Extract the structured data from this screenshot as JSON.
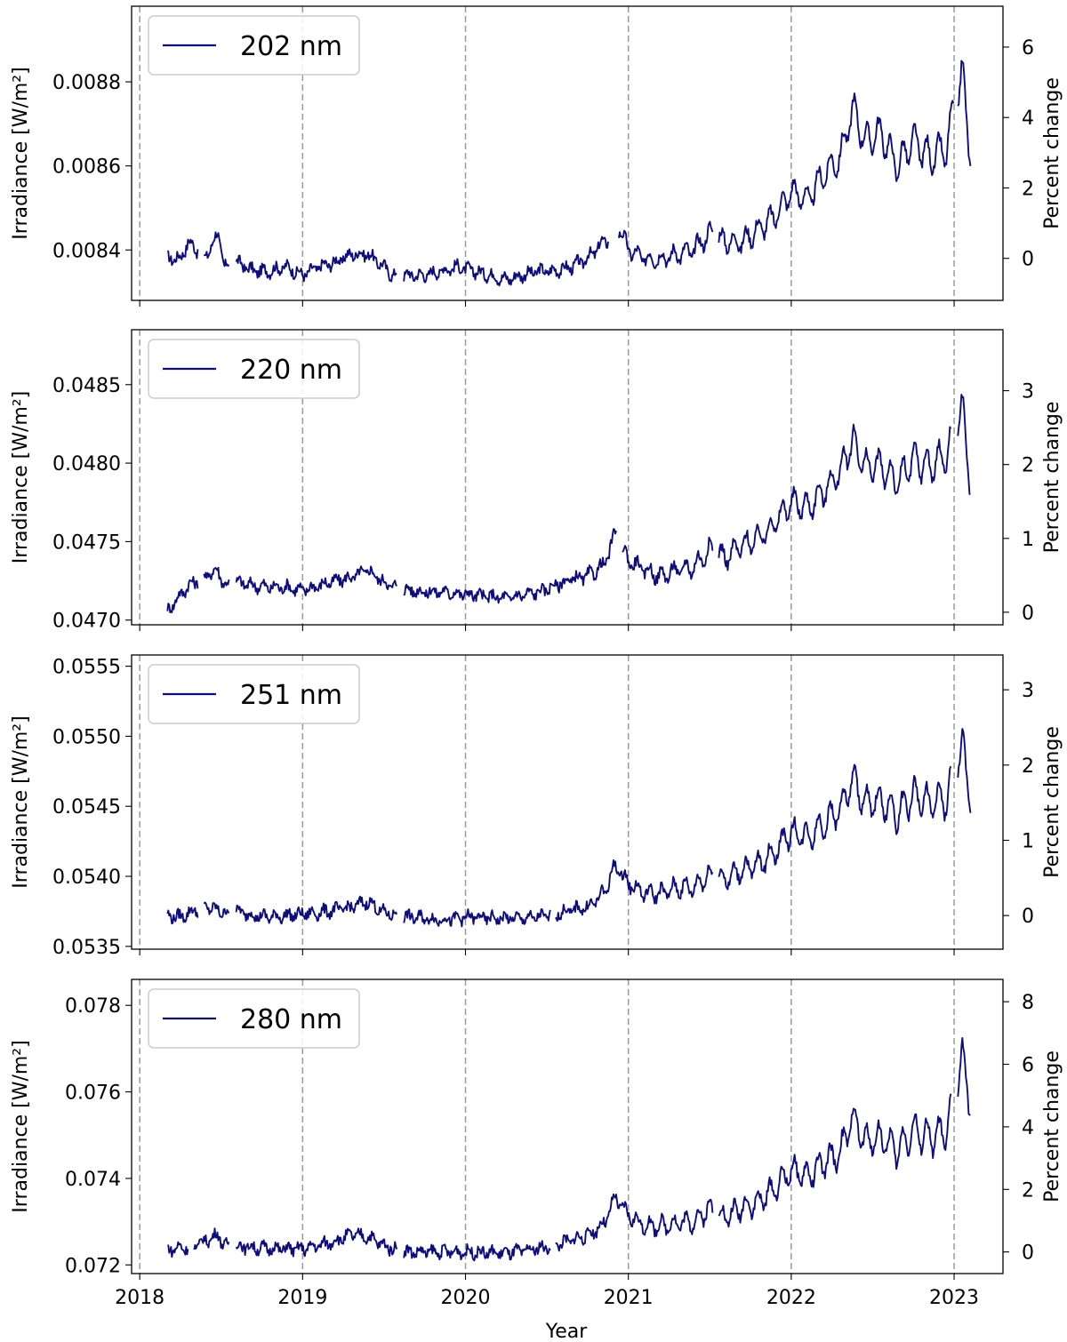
{
  "chart_data": [
    {
      "type": "line",
      "legend": "202 nm",
      "legend_position": "top-left",
      "xlabel": "",
      "ylabel_left": "Irradiance [W/m²]",
      "ylabel_right": "Percent change",
      "x_ticks": [
        "2018",
        "2019",
        "2020",
        "2021",
        "2022",
        "2023"
      ],
      "xlim": [
        2017.95,
        2023.3
      ],
      "y_left_ticks": [
        "0.0084",
        "0.0086",
        "0.0088"
      ],
      "y_left_tick_values": [
        0.0084,
        0.0086,
        0.0088
      ],
      "ylim_left": [
        0.00828,
        0.00898
      ],
      "y_right_ticks": [
        "0",
        "2",
        "4",
        "6"
      ],
      "baseline": 0.00838,
      "series": [
        {
          "color": "#0d0d80",
          "gaps": [
            [
              2018.36,
              2018.39
            ],
            [
              2018.55,
              2018.59
            ],
            [
              2019.58,
              2019.62
            ],
            [
              2020.88,
              2020.94
            ],
            [
              2021.52,
              2021.55
            ],
            [
              2023.0,
              2023.02
            ]
          ],
          "x": [
            2018.17,
            2018.25,
            2018.3,
            2018.4,
            2018.48,
            2018.52,
            2018.6,
            2018.7,
            2018.8,
            2018.9,
            2019.0,
            2019.1,
            2019.2,
            2019.3,
            2019.4,
            2019.5,
            2019.55,
            2019.65,
            2019.75,
            2019.85,
            2019.95,
            2020.05,
            2020.15,
            2020.25,
            2020.35,
            2020.45,
            2020.55,
            2020.65,
            2020.75,
            2020.85,
            2020.95,
            2021.0,
            2021.1,
            2021.2,
            2021.3,
            2021.4,
            2021.5,
            2021.6,
            2021.7,
            2021.8,
            2021.9,
            2022.0,
            2022.1,
            2022.2,
            2022.3,
            2022.38,
            2022.45,
            2022.55,
            2022.65,
            2022.75,
            2022.85,
            2022.95,
            2023.05,
            2023.1
          ],
          "y": [
            0.00838,
            0.00838,
            0.00842,
            0.00838,
            0.00844,
            0.00836,
            0.00837,
            0.00835,
            0.00835,
            0.00836,
            0.00834,
            0.00836,
            0.00837,
            0.00839,
            0.00839,
            0.00836,
            0.00834,
            0.00834,
            0.00834,
            0.00835,
            0.00836,
            0.00835,
            0.00834,
            0.00833,
            0.00834,
            0.00835,
            0.00835,
            0.00836,
            0.00838,
            0.00842,
            0.00845,
            0.0084,
            0.00838,
            0.00838,
            0.00839,
            0.0084,
            0.00844,
            0.00842,
            0.00842,
            0.00845,
            0.00848,
            0.00854,
            0.00852,
            0.00858,
            0.00862,
            0.00874,
            0.00866,
            0.00868,
            0.0086,
            0.00866,
            0.00862,
            0.00864,
            0.00882,
            0.00863
          ]
        }
      ]
    },
    {
      "type": "line",
      "legend": "220 nm",
      "legend_position": "top-left",
      "xlabel": "",
      "ylabel_left": "Irradiance [W/m²]",
      "ylabel_right": "Percent change",
      "x_ticks": [
        "2018",
        "2019",
        "2020",
        "2021",
        "2022",
        "2023"
      ],
      "xlim": [
        2017.95,
        2023.3
      ],
      "y_left_ticks": [
        "0.0470",
        "0.0475",
        "0.0480",
        "0.0485"
      ],
      "y_left_tick_values": [
        0.047,
        0.0475,
        0.048,
        0.0485
      ],
      "ylim_left": [
        0.04697,
        0.04885
      ],
      "y_right_ticks": [
        "0",
        "1",
        "2",
        "3"
      ],
      "baseline": 0.04705,
      "series": [
        {
          "color": "#0d0d80",
          "gaps": [
            [
              2018.36,
              2018.39
            ],
            [
              2018.55,
              2018.59
            ],
            [
              2019.58,
              2019.62
            ],
            [
              2020.93,
              2020.96
            ],
            [
              2021.52,
              2021.55
            ],
            [
              2022.98,
              2023.02
            ]
          ],
          "x": [
            2018.17,
            2018.25,
            2018.3,
            2018.4,
            2018.48,
            2018.52,
            2018.6,
            2018.7,
            2018.8,
            2018.9,
            2019.0,
            2019.1,
            2019.2,
            2019.3,
            2019.4,
            2019.5,
            2019.55,
            2019.65,
            2019.75,
            2019.85,
            2019.95,
            2020.05,
            2020.15,
            2020.25,
            2020.35,
            2020.45,
            2020.55,
            2020.65,
            2020.75,
            2020.85,
            2020.92,
            2021.0,
            2021.1,
            2021.2,
            2021.3,
            2021.4,
            2021.5,
            2021.6,
            2021.7,
            2021.8,
            2021.9,
            2022.0,
            2022.1,
            2022.2,
            2022.3,
            2022.38,
            2022.45,
            2022.55,
            2022.65,
            2022.75,
            2022.85,
            2022.95,
            2023.05,
            2023.1
          ],
          "y": [
            0.04706,
            0.04716,
            0.04722,
            0.04728,
            0.04732,
            0.04722,
            0.04724,
            0.04722,
            0.04721,
            0.04721,
            0.04719,
            0.04722,
            0.04725,
            0.04727,
            0.04732,
            0.04724,
            0.04722,
            0.04719,
            0.04718,
            0.04718,
            0.04717,
            0.04716,
            0.04715,
            0.04714,
            0.04716,
            0.04718,
            0.04722,
            0.04726,
            0.04728,
            0.04735,
            0.04755,
            0.04738,
            0.04732,
            0.04728,
            0.04732,
            0.04734,
            0.04745,
            0.0474,
            0.04748,
            0.04752,
            0.04762,
            0.04775,
            0.04772,
            0.04782,
            0.04795,
            0.04815,
            0.04798,
            0.04798,
            0.04788,
            0.04802,
            0.04798,
            0.04805,
            0.04835,
            0.04788
          ]
        }
      ]
    },
    {
      "type": "line",
      "legend": "251 nm",
      "legend_position": "top-left",
      "xlabel": "",
      "ylabel_left": "Irradiance [W/m²]",
      "ylabel_right": "Percent change",
      "x_ticks": [
        "2018",
        "2019",
        "2020",
        "2021",
        "2022",
        "2023"
      ],
      "xlim": [
        2017.95,
        2023.3
      ],
      "y_left_ticks": [
        "0.0535",
        "0.0540",
        "0.0545",
        "0.0550",
        "0.0555"
      ],
      "y_left_tick_values": [
        0.0535,
        0.054,
        0.0545,
        0.055,
        0.0555
      ],
      "ylim_left": [
        0.05348,
        0.05558
      ],
      "y_right_ticks": [
        "0",
        "1",
        "2",
        "3"
      ],
      "baseline": 0.05372,
      "series": [
        {
          "color": "#0d0d80",
          "gaps": [
            [
              2018.36,
              2018.39
            ],
            [
              2018.55,
              2018.59
            ],
            [
              2019.58,
              2019.62
            ],
            [
              2020.52,
              2020.55
            ],
            [
              2021.52,
              2021.55
            ],
            [
              2022.98,
              2023.02
            ]
          ],
          "x": [
            2018.17,
            2018.25,
            2018.3,
            2018.4,
            2018.48,
            2018.52,
            2018.6,
            2018.7,
            2018.8,
            2018.9,
            2019.0,
            2019.1,
            2019.2,
            2019.3,
            2019.4,
            2019.5,
            2019.55,
            2019.65,
            2019.75,
            2019.85,
            2019.95,
            2020.05,
            2020.15,
            2020.25,
            2020.35,
            2020.45,
            2020.55,
            2020.65,
            2020.75,
            2020.85,
            2020.92,
            2021.0,
            2021.1,
            2021.2,
            2021.3,
            2021.4,
            2021.5,
            2021.6,
            2021.7,
            2021.8,
            2021.9,
            2022.0,
            2022.1,
            2022.2,
            2022.3,
            2022.38,
            2022.45,
            2022.55,
            2022.65,
            2022.75,
            2022.85,
            2022.95,
            2023.05,
            2023.1
          ],
          "y": [
            0.05372,
            0.05371,
            0.05374,
            0.05378,
            0.05376,
            0.05374,
            0.05375,
            0.05372,
            0.05371,
            0.05372,
            0.05373,
            0.05374,
            0.05376,
            0.05378,
            0.05382,
            0.05374,
            0.05373,
            0.05371,
            0.0537,
            0.05369,
            0.0537,
            0.05371,
            0.0537,
            0.0537,
            0.0537,
            0.05371,
            0.05373,
            0.05376,
            0.05378,
            0.05388,
            0.05408,
            0.05395,
            0.05388,
            0.05388,
            0.05392,
            0.05392,
            0.05402,
            0.05398,
            0.05405,
            0.05408,
            0.05418,
            0.05432,
            0.05428,
            0.05438,
            0.05448,
            0.0547,
            0.05452,
            0.05454,
            0.05444,
            0.05458,
            0.05452,
            0.05455,
            0.05492,
            0.05458
          ]
        }
      ]
    },
    {
      "type": "line",
      "legend": "280 nm",
      "legend_position": "top-left",
      "xlabel": "Year",
      "ylabel_left": "Irradiance [W/m²]",
      "ylabel_right": "Percent change",
      "x_ticks": [
        "2018",
        "2019",
        "2020",
        "2021",
        "2022",
        "2023"
      ],
      "xlim": [
        2017.95,
        2023.3
      ],
      "y_left_ticks": [
        "0.072",
        "0.074",
        "0.076",
        "0.078"
      ],
      "y_left_tick_values": [
        0.072,
        0.074,
        0.076,
        0.078
      ],
      "ylim_left": [
        0.0718,
        0.0786
      ],
      "y_right_ticks": [
        "0",
        "2",
        "4",
        "6",
        "8"
      ],
      "baseline": 0.0723,
      "series": [
        {
          "color": "#0d0d80",
          "gaps": [
            [
              2018.3,
              2018.33
            ],
            [
              2018.55,
              2018.59
            ],
            [
              2019.58,
              2019.62
            ],
            [
              2020.52,
              2020.55
            ],
            [
              2021.52,
              2021.55
            ],
            [
              2022.98,
              2023.02
            ]
          ],
          "x": [
            2018.17,
            2018.25,
            2018.3,
            2018.4,
            2018.48,
            2018.52,
            2018.6,
            2018.7,
            2018.8,
            2018.9,
            2019.0,
            2019.1,
            2019.2,
            2019.3,
            2019.4,
            2019.5,
            2019.55,
            2019.65,
            2019.75,
            2019.85,
            2019.95,
            2020.05,
            2020.15,
            2020.25,
            2020.35,
            2020.45,
            2020.55,
            2020.65,
            2020.75,
            2020.85,
            2020.92,
            2021.0,
            2021.1,
            2021.2,
            2021.3,
            2021.4,
            2021.5,
            2021.6,
            2021.7,
            2021.8,
            2021.9,
            2022.0,
            2022.1,
            2022.2,
            2022.3,
            2022.38,
            2022.45,
            2022.55,
            2022.65,
            2022.75,
            2022.85,
            2022.95,
            2023.05,
            2023.1
          ],
          "y": [
            0.07235,
            0.0724,
            0.0724,
            0.07255,
            0.0727,
            0.07245,
            0.07245,
            0.0724,
            0.07238,
            0.07238,
            0.07237,
            0.07245,
            0.07255,
            0.0727,
            0.07265,
            0.07245,
            0.07238,
            0.0723,
            0.0723,
            0.0723,
            0.0723,
            0.0723,
            0.07228,
            0.07228,
            0.07232,
            0.07238,
            0.07245,
            0.07258,
            0.07268,
            0.07295,
            0.07355,
            0.07315,
            0.0729,
            0.0729,
            0.07298,
            0.073,
            0.0733,
            0.0731,
            0.07335,
            0.07345,
            0.07378,
            0.0742,
            0.07405,
            0.07435,
            0.0746,
            0.07545,
            0.07485,
            0.07495,
            0.07465,
            0.0751,
            0.07495,
            0.07505,
            0.0768,
            0.07575
          ]
        }
      ]
    }
  ]
}
